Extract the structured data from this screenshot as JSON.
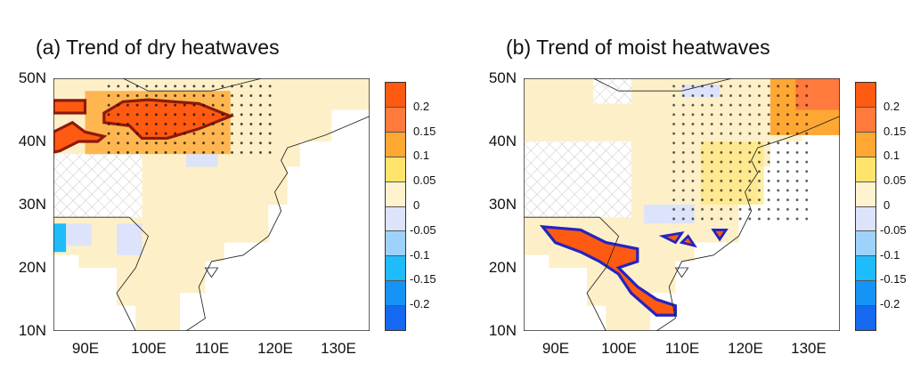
{
  "panels": [
    {
      "title": "(a) Trend of dry heatwaves"
    },
    {
      "title": "(b) Trend of moist heatwaves"
    }
  ],
  "lat_labels": [
    "50N",
    "40N",
    "30N",
    "20N",
    "10N"
  ],
  "lon_labels": [
    "90E",
    "100E",
    "110E",
    "120E",
    "130E"
  ],
  "colorbar": {
    "labels": [
      "0.2",
      "0.15",
      "0.1",
      "0.05",
      "0",
      "-0.05",
      "-0.1",
      "-0.15",
      "-0.2"
    ],
    "colors": [
      "#ff5a12",
      "#ff7a3c",
      "#ffa733",
      "#ffe46b",
      "#fff3cf",
      "#dce3fa",
      "#9fd2fb",
      "#1ebcfb",
      "#1594f5",
      "#1568f0"
    ]
  },
  "colors": {
    "land": "#fdf0c8",
    "outline_a": "#8b1a0a",
    "outline_b": "#2424c0"
  }
}
